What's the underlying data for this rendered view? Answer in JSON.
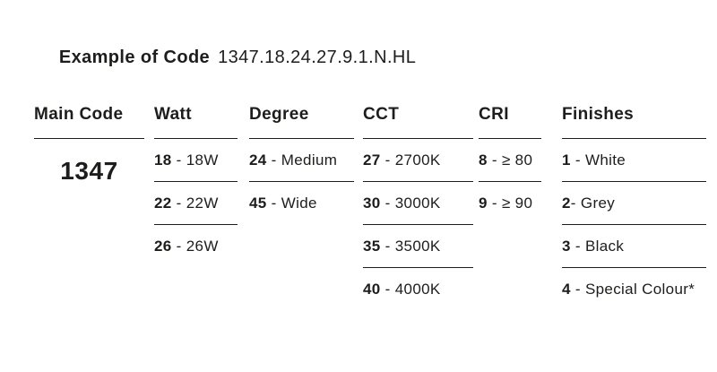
{
  "title": {
    "label": "Example of Code",
    "code": "1347.18.24.27.9.1.N.HL"
  },
  "colors": {
    "text": "#1d1d1b",
    "line": "#1d1d1b",
    "background": "#ffffff"
  },
  "table": {
    "columns": [
      {
        "header": "Main Code",
        "value": "1347"
      },
      {
        "header": "Watt",
        "items": [
          {
            "code": "18",
            "sep": " - ",
            "label": "18W"
          },
          {
            "code": "22",
            "sep": " - ",
            "label": "22W"
          },
          {
            "code": "26",
            "sep": " - ",
            "label": "26W"
          }
        ]
      },
      {
        "header": "Degree",
        "items": [
          {
            "code": "24",
            "sep": " - ",
            "label": "Medium"
          },
          {
            "code": "45",
            "sep": " - ",
            "label": "Wide"
          }
        ]
      },
      {
        "header": "CCT",
        "items": [
          {
            "code": "27",
            "sep": " - ",
            "label": "2700K"
          },
          {
            "code": "30",
            "sep": " - ",
            "label": "3000K"
          },
          {
            "code": "35",
            "sep": " - ",
            "label": "3500K"
          },
          {
            "code": "40",
            "sep": " - ",
            "label": "4000K"
          }
        ]
      },
      {
        "header": "CRI",
        "items": [
          {
            "code": "8",
            "sep": " - ",
            "label": "≥ 80"
          },
          {
            "code": "9",
            "sep": " - ",
            "label": "≥ 90"
          }
        ]
      },
      {
        "header": "Finishes",
        "items": [
          {
            "code": "1",
            "sep": " - ",
            "label": "White"
          },
          {
            "code": "2",
            "sep": "- ",
            "label": "Grey"
          },
          {
            "code": "3",
            "sep": " - ",
            "label": "Black"
          },
          {
            "code": "4",
            "sep": " - ",
            "label": "Special Colour*"
          }
        ]
      }
    ]
  }
}
